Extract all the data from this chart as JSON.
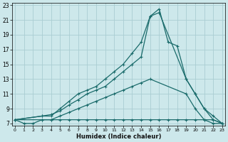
{
  "xlabel": "Humidex (Indice chaleur)",
  "bg_color": "#cde8eb",
  "grid_color": "#aacdd2",
  "line_color": "#1a6b6b",
  "ylim": [
    7,
    23
  ],
  "xlim": [
    0,
    23
  ],
  "yticks": [
    7,
    9,
    11,
    13,
    15,
    17,
    19,
    21,
    23
  ],
  "xticks": [
    0,
    1,
    2,
    3,
    4,
    5,
    6,
    7,
    8,
    9,
    10,
    11,
    12,
    13,
    14,
    15,
    16,
    17,
    18,
    19,
    20,
    21,
    22,
    23
  ],
  "lines_x": [
    [
      0,
      1,
      2,
      3,
      4,
      5,
      6,
      7,
      8,
      9,
      10,
      11,
      12,
      13,
      14,
      15,
      16,
      17,
      18,
      19,
      20,
      21,
      22,
      23
    ],
    [
      0,
      3,
      4,
      5,
      6,
      7,
      8,
      9,
      10,
      11,
      12,
      13,
      14,
      15,
      16,
      17,
      18,
      19,
      20,
      21,
      22,
      23
    ],
    [
      0,
      3,
      4,
      5,
      6,
      7,
      8,
      9,
      10,
      11,
      12,
      13,
      14,
      15,
      16,
      19,
      20,
      21,
      22,
      23
    ],
    [
      0,
      3,
      4,
      5,
      6,
      7,
      8,
      9,
      10,
      11,
      12,
      13,
      14,
      15,
      19,
      20,
      21,
      22,
      23
    ]
  ],
  "lines_y": [
    [
      7.5,
      7,
      7,
      7.5,
      7.5,
      7.5,
      7.5,
      7.5,
      7.5,
      7.5,
      7.5,
      7.5,
      7.5,
      7.5,
      7.5,
      7.5,
      7.5,
      7.5,
      7.5,
      7.5,
      7.5,
      7.5,
      7.5,
      7
    ],
    [
      7.5,
      8,
      8,
      9,
      10,
      11,
      11.5,
      12,
      13,
      14,
      15,
      16.5,
      18,
      21.5,
      22.5,
      18,
      17.5,
      13,
      11,
      9,
      8,
      7
    ],
    [
      7.5,
      8,
      8.2,
      8.7,
      9.5,
      10.2,
      11,
      11.5,
      12,
      13,
      14,
      15,
      16,
      21.5,
      22,
      13,
      11,
      9,
      7.5,
      7
    ],
    [
      7.5,
      7.5,
      7.5,
      8,
      8.5,
      9,
      9.5,
      10,
      10.5,
      11,
      11.5,
      12,
      12.5,
      13,
      11,
      9,
      7.5,
      7,
      7
    ]
  ]
}
